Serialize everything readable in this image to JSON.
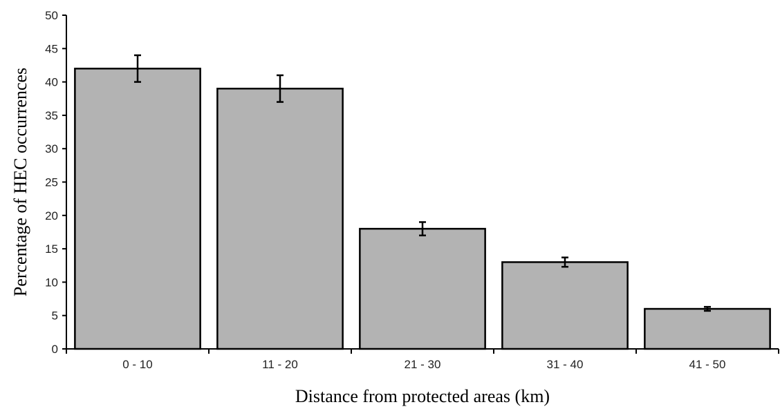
{
  "chart_data": {
    "type": "bar",
    "title": "",
    "xlabel": "Distance from protected areas (km)",
    "ylabel": "Percentage of HEC occurrences",
    "categories": [
      "0 - 10",
      "11 - 20",
      "21 - 30",
      "31 -  40",
      "41 - 50"
    ],
    "values": [
      42,
      39,
      18,
      13,
      6
    ],
    "error": [
      2,
      2,
      1,
      0.7,
      0.3
    ],
    "ylim": [
      0,
      50
    ],
    "yticks": [
      0,
      5,
      10,
      15,
      20,
      25,
      30,
      35,
      40,
      45,
      50
    ],
    "grid": false,
    "legend": "none",
    "bar_color": "#b3b3b3"
  }
}
